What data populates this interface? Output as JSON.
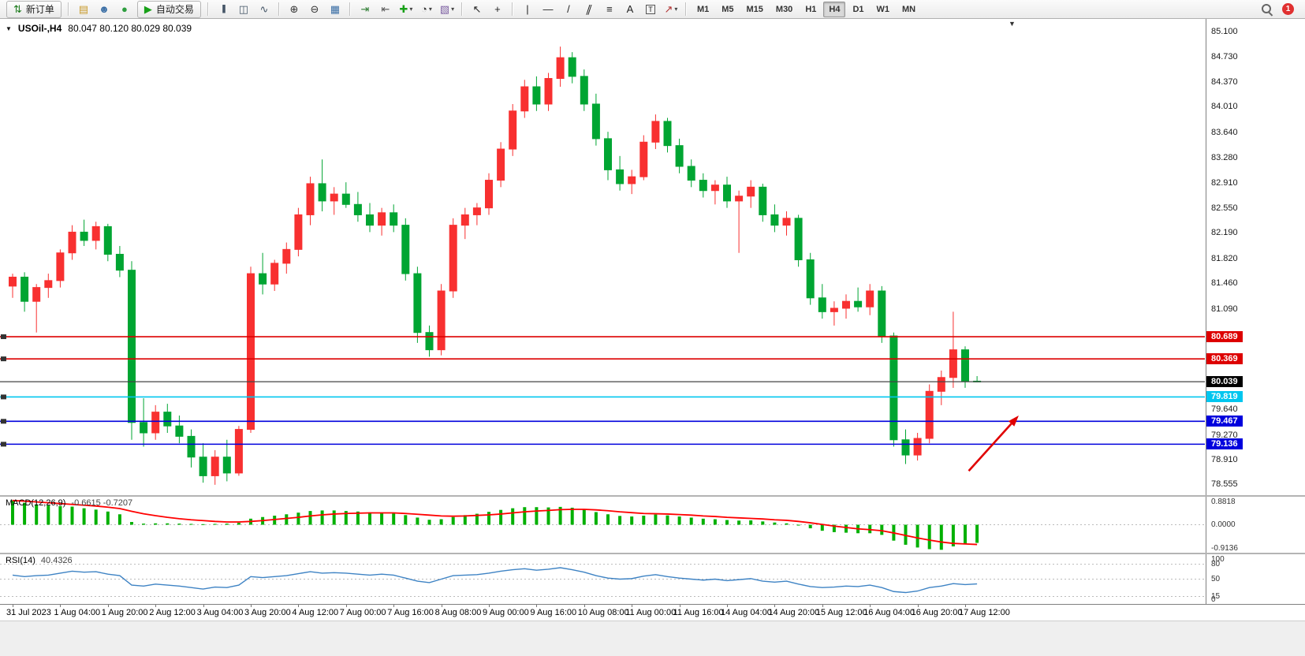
{
  "toolbar": {
    "dropdown_glyph": "▾",
    "notification_count": "1",
    "active_timeframe": "H4",
    "items": [
      {
        "t": "btn",
        "name": "new-order",
        "label": "新订单",
        "glyph": "⇅",
        "gcolor": "#1a7a1a"
      },
      {
        "t": "sep"
      },
      {
        "t": "ico",
        "name": "new-chart",
        "glyph": "▤",
        "gcolor": "#c99a2c"
      },
      {
        "t": "ico",
        "name": "profiles",
        "glyph": "☻",
        "gcolor": "#3a6ea5"
      },
      {
        "t": "ico",
        "name": "marketplace",
        "glyph": "●",
        "gcolor": "#2e9e3f"
      },
      {
        "t": "btn",
        "name": "auto-trading",
        "label": "自动交易",
        "glyph": "▶",
        "gcolor": "#18a018"
      },
      {
        "t": "sep"
      },
      {
        "t": "ico",
        "name": "bar-chart-mode",
        "glyph": "|||",
        "gcolor": "#445566",
        "cls": "bars"
      },
      {
        "t": "ico",
        "name": "candlestick-mode",
        "glyph": "◫",
        "gcolor": "#445566"
      },
      {
        "t": "ico",
        "name": "line-chart-mode",
        "glyph": "∿",
        "gcolor": "#445566"
      },
      {
        "t": "sep"
      },
      {
        "t": "ico",
        "name": "zoom-in",
        "glyph": "⊕",
        "gcolor": "#333333"
      },
      {
        "t": "ico",
        "name": "zoom-out",
        "glyph": "⊖",
        "gcolor": "#333333"
      },
      {
        "t": "ico",
        "name": "tile-windows",
        "glyph": "▦",
        "gcolor": "#3a6ea5"
      },
      {
        "t": "sep"
      },
      {
        "t": "ico",
        "name": "auto-scroll",
        "glyph": "⇥",
        "gcolor": "#2e7d32"
      },
      {
        "t": "ico",
        "name": "chart-shift",
        "glyph": "⇤",
        "gcolor": "#555555"
      },
      {
        "t": "ico",
        "name": "indicators",
        "glyph": "✚",
        "gcolor": "#18a018",
        "dd": true
      },
      {
        "t": "ico",
        "name": "periods",
        "glyph": "◔",
        "gcolor": "#333333",
        "dd": true
      },
      {
        "t": "ico",
        "name": "templates",
        "glyph": "▧",
        "gcolor": "#7a5ca0",
        "dd": true
      },
      {
        "t": "sep"
      },
      {
        "t": "ico",
        "name": "cursor",
        "glyph": "↖",
        "gcolor": "#222222"
      },
      {
        "t": "ico",
        "name": "crosshair",
        "glyph": "+",
        "gcolor": "#222222"
      },
      {
        "t": "sep"
      },
      {
        "t": "ico",
        "name": "vertical-line",
        "glyph": "|",
        "gcolor": "#222222"
      },
      {
        "t": "ico",
        "name": "horizontal-line",
        "glyph": "—",
        "gcolor": "#222222"
      },
      {
        "t": "ico",
        "name": "trendline",
        "glyph": "/",
        "gcolor": "#222222"
      },
      {
        "t": "ico",
        "name": "equidistant-channel",
        "glyph": "∥",
        "gcolor": "#222222",
        "cls": "skew"
      },
      {
        "t": "ico",
        "name": "fibonacci",
        "glyph": "≡",
        "gcolor": "#222222"
      },
      {
        "t": "ico",
        "name": "text",
        "glyph": "A",
        "gcolor": "#222222"
      },
      {
        "t": "ico",
        "name": "text-label",
        "glyph": "T",
        "gcolor": "#222222",
        "cls": "boxed"
      },
      {
        "t": "ico",
        "name": "arrows",
        "glyph": "↗",
        "gcolor": "#b03030",
        "dd": true
      },
      {
        "t": "sep"
      },
      {
        "t": "tf",
        "label": "M1"
      },
      {
        "t": "tf",
        "label": "M5"
      },
      {
        "t": "tf",
        "label": "M15"
      },
      {
        "t": "tf",
        "label": "M30"
      },
      {
        "t": "tf",
        "label": "H1"
      },
      {
        "t": "tf",
        "label": "H4"
      },
      {
        "t": "tf",
        "label": "D1"
      },
      {
        "t": "tf",
        "label": "W1"
      },
      {
        "t": "tf",
        "label": "MN"
      }
    ]
  },
  "chart": {
    "menu_arrow_glyph": "▼",
    "end_marker_glyph": "▼",
    "symbol_period": "USOil-,H4",
    "ohlc_text": "80.047 80.120 80.029 80.039",
    "macd_label": "MACD(12,26,9)",
    "macd_values": "-0.6615 -0.7207",
    "rsi_label": "RSI(14)",
    "rsi_value": "40.4326"
  },
  "chart_data": {
    "type": "candlestick",
    "title": "USOil- H4",
    "ylim": [
      78.4,
      85.28
    ],
    "y_ticks": [
      "85.100",
      "84.730",
      "84.370",
      "84.010",
      "83.640",
      "83.280",
      "82.910",
      "82.550",
      "82.190",
      "81.820",
      "81.460",
      "81.090",
      "79.640",
      "79.270",
      "78.910",
      "78.555"
    ],
    "x_labels": [
      "31 Jul 2023",
      "1 Aug 04:00",
      "1 Aug 20:00",
      "2 Aug 12:00",
      "3 Aug 04:00",
      "3 Aug 20:00",
      "4 Aug 12:00",
      "7 Aug 00:00",
      "7 Aug 16:00",
      "8 Aug 08:00",
      "9 Aug 00:00",
      "9 Aug 16:00",
      "10 Aug 08:00",
      "11 Aug 00:00",
      "11 Aug 16:00",
      "14 Aug 04:00",
      "14 Aug 20:00",
      "15 Aug 12:00",
      "16 Aug 04:00",
      "16 Aug 20:00",
      "17 Aug 12:00"
    ],
    "bars_per_label": 4,
    "colors": {
      "up": "#f83030",
      "down": "#00a532",
      "background": "#ffffff"
    },
    "candles": [
      [
        81.42,
        81.6,
        81.25,
        81.55
      ],
      [
        81.55,
        81.62,
        81.05,
        81.2
      ],
      [
        81.2,
        81.45,
        80.75,
        81.4
      ],
      [
        81.4,
        81.6,
        81.25,
        81.5
      ],
      [
        81.5,
        81.95,
        81.4,
        81.9
      ],
      [
        81.9,
        82.3,
        81.8,
        82.2
      ],
      [
        82.2,
        82.38,
        82.0,
        82.08
      ],
      [
        82.08,
        82.35,
        81.95,
        82.28
      ],
      [
        82.28,
        82.32,
        81.78,
        81.88
      ],
      [
        81.88,
        82.0,
        81.55,
        81.65
      ],
      [
        81.65,
        81.78,
        79.2,
        79.45
      ],
      [
        79.45,
        79.8,
        79.1,
        79.3
      ],
      [
        79.3,
        79.7,
        79.2,
        79.6
      ],
      [
        79.6,
        79.72,
        79.3,
        79.4
      ],
      [
        79.4,
        79.55,
        79.15,
        79.25
      ],
      [
        79.25,
        79.35,
        78.8,
        78.95
      ],
      [
        78.95,
        79.15,
        78.58,
        78.68
      ],
      [
        78.68,
        79.05,
        78.55,
        78.95
      ],
      [
        78.95,
        79.2,
        78.6,
        78.72
      ],
      [
        78.72,
        79.4,
        78.68,
        79.35
      ],
      [
        79.35,
        81.7,
        79.3,
        81.6
      ],
      [
        81.6,
        81.9,
        81.3,
        81.45
      ],
      [
        81.45,
        81.8,
        81.35,
        81.75
      ],
      [
        81.75,
        82.05,
        81.6,
        81.95
      ],
      [
        81.95,
        82.55,
        81.85,
        82.45
      ],
      [
        82.45,
        83.0,
        82.3,
        82.9
      ],
      [
        82.9,
        83.25,
        82.5,
        82.65
      ],
      [
        82.65,
        82.85,
        82.45,
        82.75
      ],
      [
        82.75,
        82.92,
        82.55,
        82.6
      ],
      [
        82.6,
        82.78,
        82.35,
        82.45
      ],
      [
        82.45,
        82.62,
        82.2,
        82.3
      ],
      [
        82.3,
        82.55,
        82.15,
        82.48
      ],
      [
        82.48,
        82.6,
        82.2,
        82.3
      ],
      [
        82.3,
        82.4,
        81.5,
        81.6
      ],
      [
        81.6,
        81.7,
        80.6,
        80.75
      ],
      [
        80.75,
        80.85,
        80.4,
        80.5
      ],
      [
        80.5,
        81.45,
        80.42,
        81.35
      ],
      [
        81.35,
        82.4,
        81.25,
        82.3
      ],
      [
        82.3,
        82.55,
        82.1,
        82.45
      ],
      [
        82.45,
        82.62,
        82.3,
        82.55
      ],
      [
        82.55,
        83.05,
        82.45,
        82.95
      ],
      [
        82.95,
        83.5,
        82.85,
        83.4
      ],
      [
        83.4,
        84.05,
        83.3,
        83.95
      ],
      [
        83.95,
        84.4,
        83.85,
        84.3
      ],
      [
        84.3,
        84.45,
        83.95,
        84.05
      ],
      [
        84.05,
        84.5,
        83.95,
        84.42
      ],
      [
        84.42,
        84.88,
        84.3,
        84.72
      ],
      [
        84.72,
        84.8,
        84.35,
        84.45
      ],
      [
        84.45,
        84.55,
        83.95,
        84.05
      ],
      [
        84.05,
        84.2,
        83.45,
        83.55
      ],
      [
        83.55,
        83.65,
        82.95,
        83.1
      ],
      [
        83.1,
        83.3,
        82.8,
        82.9
      ],
      [
        82.9,
        83.1,
        82.75,
        83.0
      ],
      [
        83.0,
        83.6,
        82.95,
        83.5
      ],
      [
        83.5,
        83.9,
        83.4,
        83.8
      ],
      [
        83.8,
        83.85,
        83.35,
        83.45
      ],
      [
        83.45,
        83.55,
        83.05,
        83.15
      ],
      [
        83.15,
        83.25,
        82.85,
        82.95
      ],
      [
        82.95,
        83.05,
        82.7,
        82.8
      ],
      [
        82.8,
        82.95,
        82.6,
        82.88
      ],
      [
        82.88,
        83.0,
        82.55,
        82.65
      ],
      [
        82.65,
        82.8,
        81.9,
        82.72
      ],
      [
        82.72,
        82.95,
        82.55,
        82.85
      ],
      [
        82.85,
        82.9,
        82.35,
        82.45
      ],
      [
        82.45,
        82.6,
        82.2,
        82.3
      ],
      [
        82.3,
        82.5,
        82.15,
        82.4
      ],
      [
        82.4,
        82.45,
        81.7,
        81.8
      ],
      [
        81.8,
        81.9,
        81.15,
        81.25
      ],
      [
        81.25,
        81.45,
        80.95,
        81.05
      ],
      [
        81.05,
        81.2,
        80.85,
        81.1
      ],
      [
        81.1,
        81.3,
        80.95,
        81.2
      ],
      [
        81.2,
        81.4,
        81.05,
        81.12
      ],
      [
        81.12,
        81.45,
        81.0,
        81.35
      ],
      [
        81.35,
        81.42,
        80.6,
        80.7
      ],
      [
        80.7,
        80.75,
        79.1,
        79.2
      ],
      [
        79.2,
        79.35,
        78.85,
        78.98
      ],
      [
        78.98,
        79.3,
        78.9,
        79.22
      ],
      [
        79.22,
        80.0,
        79.15,
        79.9
      ],
      [
        79.9,
        80.2,
        79.7,
        80.1
      ],
      [
        80.1,
        81.05,
        79.95,
        80.5
      ],
      [
        80.5,
        80.55,
        79.95,
        80.04
      ],
      [
        80.047,
        80.12,
        80.029,
        80.039
      ]
    ],
    "hlines": [
      {
        "value": 80.689,
        "color": "#dd0000"
      },
      {
        "value": 80.369,
        "color": "#dd0000"
      },
      {
        "value": 79.819,
        "color": "#00c6ef"
      },
      {
        "value": 79.467,
        "color": "#0000dd"
      },
      {
        "value": 79.136,
        "color": "#0000dd"
      }
    ],
    "price_line": {
      "value": 80.039,
      "color": "#444444",
      "label_bg": "#000000"
    },
    "arrow": {
      "bar_from": 80.3,
      "price_from": 78.75,
      "bar_to": 84.5,
      "price_to": 79.55,
      "color": "#e00000"
    },
    "macd": {
      "ylim": [
        -1.02,
        1.02
      ],
      "ticks": [
        "0.8818",
        "0.0000",
        "-0.9136"
      ],
      "hist_color": "#00b000",
      "signal_color": "#ff0000",
      "histogram": [
        0.88,
        0.8,
        0.74,
        0.7,
        0.68,
        0.66,
        0.6,
        0.55,
        0.48,
        0.38,
        0.1,
        0.04,
        0.05,
        0.05,
        0.04,
        0.03,
        0.02,
        0.03,
        0.04,
        0.07,
        0.22,
        0.28,
        0.33,
        0.38,
        0.44,
        0.5,
        0.52,
        0.52,
        0.5,
        0.48,
        0.45,
        0.43,
        0.41,
        0.35,
        0.26,
        0.18,
        0.2,
        0.28,
        0.35,
        0.4,
        0.47,
        0.54,
        0.6,
        0.64,
        0.64,
        0.63,
        0.65,
        0.62,
        0.56,
        0.46,
        0.38,
        0.32,
        0.3,
        0.33,
        0.37,
        0.34,
        0.3,
        0.26,
        0.22,
        0.2,
        0.17,
        0.15,
        0.16,
        0.12,
        0.08,
        0.05,
        -0.03,
        -0.13,
        -0.22,
        -0.27,
        -0.29,
        -0.31,
        -0.31,
        -0.37,
        -0.58,
        -0.73,
        -0.83,
        -0.89,
        -0.9136,
        -0.79,
        -0.72,
        -0.6615
      ],
      "signal": [
        0.8818,
        0.86,
        0.83,
        0.8,
        0.77,
        0.74,
        0.71,
        0.68,
        0.64,
        0.59,
        0.49,
        0.4,
        0.33,
        0.27,
        0.22,
        0.18,
        0.15,
        0.12,
        0.1,
        0.1,
        0.12,
        0.15,
        0.19,
        0.23,
        0.27,
        0.32,
        0.36,
        0.39,
        0.41,
        0.42,
        0.43,
        0.43,
        0.43,
        0.41,
        0.38,
        0.35,
        0.32,
        0.31,
        0.32,
        0.34,
        0.36,
        0.39,
        0.43,
        0.47,
        0.5,
        0.52,
        0.55,
        0.56,
        0.56,
        0.54,
        0.51,
        0.47,
        0.44,
        0.41,
        0.4,
        0.39,
        0.37,
        0.35,
        0.32,
        0.3,
        0.27,
        0.25,
        0.23,
        0.21,
        0.18,
        0.16,
        0.12,
        0.07,
        0.01,
        -0.05,
        -0.1,
        -0.15,
        -0.18,
        -0.22,
        -0.3,
        -0.39,
        -0.48,
        -0.56,
        -0.63,
        -0.68,
        -0.7,
        -0.7207
      ]
    },
    "rsi": {
      "ylim": [
        0,
        100
      ],
      "ticks": [
        "100",
        "80",
        "50",
        "15",
        "0"
      ],
      "levels": [
        80,
        50,
        15
      ],
      "color": "#3e83c4",
      "values": [
        58,
        55,
        57,
        58,
        62,
        66,
        64,
        65,
        60,
        57,
        38,
        36,
        40,
        38,
        36,
        33,
        30,
        34,
        33,
        38,
        55,
        53,
        55,
        57,
        61,
        65,
        62,
        63,
        62,
        60,
        58,
        60,
        58,
        52,
        46,
        43,
        50,
        57,
        58,
        59,
        62,
        66,
        69,
        71,
        68,
        70,
        73,
        69,
        64,
        57,
        52,
        50,
        51,
        56,
        59,
        55,
        52,
        50,
        48,
        50,
        47,
        49,
        51,
        46,
        44,
        46,
        40,
        35,
        33,
        34,
        36,
        35,
        38,
        33,
        25,
        23,
        26,
        33,
        36,
        41,
        39,
        40.4326
      ]
    }
  }
}
